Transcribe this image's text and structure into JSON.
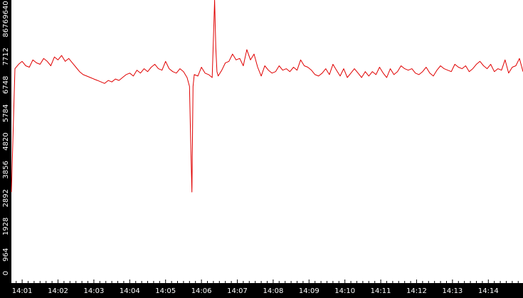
{
  "chart_data": {
    "type": "line",
    "title": "",
    "xlabel": "",
    "ylabel": "",
    "ylim": [
      0,
      9640
    ],
    "xlim": [
      "14:00:42",
      "14:14:58"
    ],
    "grid": false,
    "legend": "none",
    "y_ticks": [
      0,
      964,
      1928,
      2892,
      3856,
      4820,
      5784,
      6748,
      7712,
      8676,
      9640
    ],
    "y_tick_labels": [
      "0",
      "964",
      "1928",
      "2892",
      "3856",
      "4820",
      "5784",
      "6748",
      "7712",
      "8676",
      "9640"
    ],
    "x_ticks": [
      "14:01",
      "14:02",
      "14:03",
      "14:04",
      "14:05",
      "14:06",
      "14:07",
      "14:08",
      "14:09",
      "14:10",
      "14:11",
      "14:12",
      "14:13",
      "14:14"
    ],
    "colors": {
      "background": "#000000",
      "plot_background": "#ffffff",
      "line": "#e00000",
      "axis_text": "#ffffff"
    },
    "series": [
      {
        "x": [
          "14:00:42",
          "14:00:48",
          "14:00:54",
          "14:01:00",
          "14:01:06",
          "14:01:12",
          "14:01:18",
          "14:01:24",
          "14:01:30",
          "14:01:36",
          "14:01:42",
          "14:01:48",
          "14:01:54",
          "14:02:00",
          "14:02:06",
          "14:02:12",
          "14:02:18",
          "14:02:24",
          "14:02:30",
          "14:02:36",
          "14:02:42",
          "14:02:48",
          "14:02:54",
          "14:03:00",
          "14:03:06",
          "14:03:12",
          "14:03:18",
          "14:03:24",
          "14:03:30",
          "14:03:36",
          "14:03:42",
          "14:03:48",
          "14:03:54",
          "14:04:00",
          "14:04:06",
          "14:04:12",
          "14:04:18",
          "14:04:24",
          "14:04:30",
          "14:04:36",
          "14:04:42",
          "14:04:48",
          "14:04:54",
          "14:05:00",
          "14:05:06",
          "14:05:12",
          "14:05:18",
          "14:05:24",
          "14:05:30",
          "14:05:36",
          "14:05:40",
          "14:05:42",
          "14:05:44",
          "14:05:46",
          "14:05:48",
          "14:05:54",
          "14:06:00",
          "14:06:06",
          "14:06:12",
          "14:06:18",
          "14:06:20",
          "14:06:22",
          "14:06:24",
          "14:06:26",
          "14:06:28",
          "14:06:34",
          "14:06:40",
          "14:06:46",
          "14:06:52",
          "14:06:58",
          "14:07:04",
          "14:07:10",
          "14:07:16",
          "14:07:22",
          "14:07:28",
          "14:07:34",
          "14:07:40",
          "14:07:46",
          "14:07:52",
          "14:07:58",
          "14:08:04",
          "14:08:10",
          "14:08:16",
          "14:08:22",
          "14:08:28",
          "14:08:34",
          "14:08:40",
          "14:08:46",
          "14:08:52",
          "14:08:58",
          "14:09:04",
          "14:09:10",
          "14:09:16",
          "14:09:22",
          "14:09:28",
          "14:09:34",
          "14:09:40",
          "14:09:46",
          "14:09:52",
          "14:09:58",
          "14:10:04",
          "14:10:10",
          "14:10:16",
          "14:10:22",
          "14:10:28",
          "14:10:34",
          "14:10:40",
          "14:10:46",
          "14:10:52",
          "14:10:58",
          "14:11:04",
          "14:11:10",
          "14:11:16",
          "14:11:22",
          "14:11:28",
          "14:11:34",
          "14:11:40",
          "14:11:46",
          "14:11:52",
          "14:11:58",
          "14:12:04",
          "14:12:10",
          "14:12:16",
          "14:12:22",
          "14:12:28",
          "14:12:34",
          "14:12:40",
          "14:12:46",
          "14:12:52",
          "14:12:58",
          "14:13:04",
          "14:13:10",
          "14:13:16",
          "14:13:22",
          "14:13:28",
          "14:13:34",
          "14:13:40",
          "14:13:46",
          "14:13:52",
          "14:13:58",
          "14:14:04",
          "14:14:10",
          "14:14:16",
          "14:14:22",
          "14:14:28",
          "14:14:34",
          "14:14:40",
          "14:14:46",
          "14:14:52",
          "14:14:58"
        ],
        "y": [
          3100,
          7300,
          7450,
          7550,
          7400,
          7350,
          7600,
          7500,
          7450,
          7650,
          7550,
          7400,
          7700,
          7600,
          7750,
          7550,
          7650,
          7500,
          7350,
          7200,
          7100,
          7050,
          7000,
          6950,
          6900,
          6850,
          6800,
          6900,
          6850,
          6950,
          6900,
          7000,
          7100,
          7150,
          7050,
          7250,
          7150,
          7300,
          7200,
          7350,
          7450,
          7300,
          7250,
          7550,
          7300,
          7200,
          7150,
          7300,
          7200,
          7000,
          6700,
          4800,
          3100,
          6700,
          7100,
          7050,
          7350,
          7150,
          7100,
          7000,
          8300,
          9640,
          8000,
          7200,
          7050,
          7250,
          7500,
          7550,
          7800,
          7600,
          7650,
          7400,
          7950,
          7600,
          7800,
          7350,
          7050,
          7400,
          7250,
          7150,
          7200,
          7400,
          7250,
          7300,
          7200,
          7350,
          7250,
          7600,
          7400,
          7350,
          7250,
          7100,
          7050,
          7150,
          7300,
          7100,
          7450,
          7250,
          7050,
          7300,
          7000,
          7150,
          7300,
          7150,
          7000,
          7200,
          7050,
          7200,
          7100,
          7350,
          7150,
          7000,
          7300,
          7100,
          7200,
          7400,
          7300,
          7250,
          7300,
          7150,
          7100,
          7200,
          7350,
          7150,
          7050,
          7250,
          7400,
          7300,
          7250,
          7200,
          7450,
          7350,
          7300,
          7400,
          7200,
          7300,
          7450,
          7550,
          7400,
          7300,
          7450,
          7200,
          7300,
          7250,
          7600,
          7150,
          7350,
          7400,
          7650,
          7200
        ]
      }
    ]
  }
}
